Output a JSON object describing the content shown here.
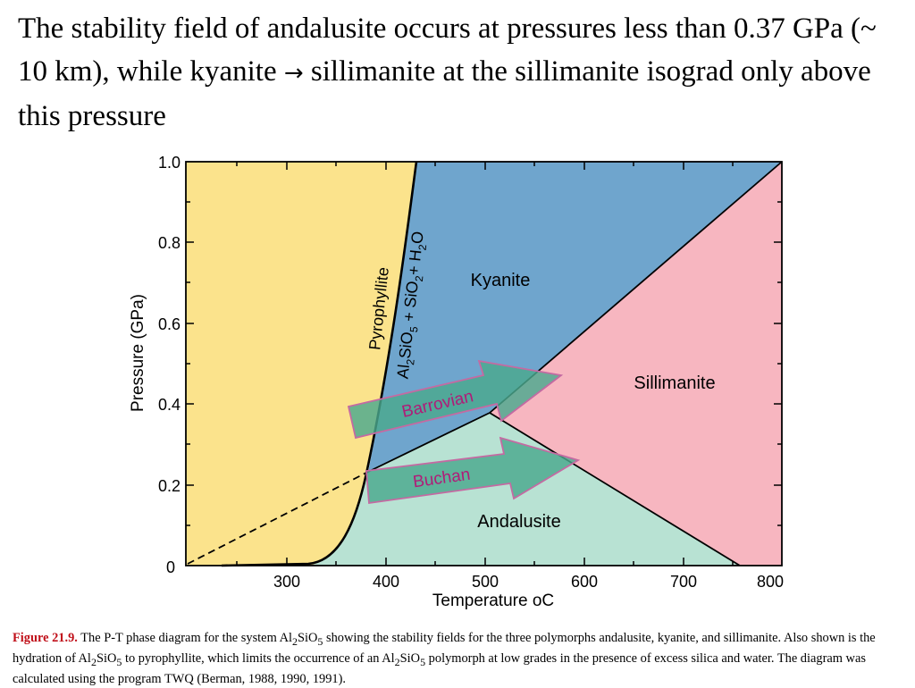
{
  "slide": {
    "title_part1": "The stability field of andalusite occurs at pressures less than 0.37 GPa (~ 10 km), while kyanite",
    "title_arrow": "→",
    "title_part2": "sillimanite at the sillimanite isograd only above this pressure"
  },
  "diagram": {
    "colors": {
      "kyanite": "#6fa5cd",
      "sillimanite": "#f7b6c0",
      "andalusite": "#b8e2d3",
      "pyrophyllite": "#fbe38c",
      "arrow_fill": "#4aa88e",
      "arrow_stroke": "#c46aa2",
      "arrow_text": "#b01c78"
    },
    "x_axis": {
      "label_prefix": "Temperature ",
      "label_unit": "oC",
      "ticks": [
        "300",
        "400",
        "500",
        "600",
        "700",
        "800"
      ]
    },
    "y_axis": {
      "label": "Pressure (GPa)",
      "ticks": [
        "1.0",
        "0.8",
        "0.6",
        "0.4",
        "0.2",
        "0"
      ]
    },
    "fields": {
      "kyanite": "Kyanite",
      "sillimanite": "Sillimanite",
      "andalusite": "Andalusite"
    },
    "reaction_curve": {
      "pyrophyllite": "Pyrophyllite",
      "al": "Al",
      "s2": "2",
      "sio": "SiO",
      "s5": "5",
      "plus_sio": " + SiO",
      "s2b": "2",
      "plus_h": "+ H",
      "s2c": "2",
      "o": "O"
    },
    "arrows": {
      "barrovian": "Barrovian",
      "buchan": "Buchan"
    }
  },
  "caption": {
    "label": "Figure 21.9.",
    "t1": " The P-T phase diagram for the system Al",
    "s1": "2",
    "t2": "SiO",
    "s2": "5",
    "t3": " showing the stability fields for the three polymorphs andalusite, kyanite, and sillimanite. Also shown is the hydration of Al",
    "s3": "2",
    "t4": "SiO",
    "s4": "5",
    "t5": " to pyrophyllite, which limits the occurrence of an Al",
    "s5": "2",
    "t6": "SiO",
    "s6": "5",
    "t7": " polymorph at low grades in the presence of excess silica and water. The diagram was calculated using the program TWQ (Berman, 1988, 1990, 1991)."
  }
}
